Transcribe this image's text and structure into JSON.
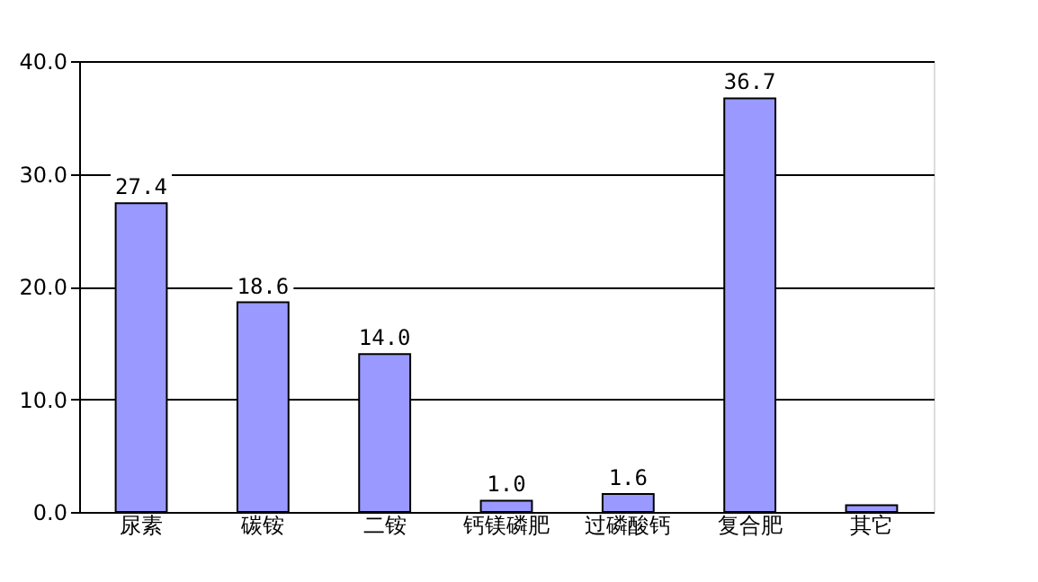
{
  "chart_data": {
    "type": "bar",
    "categories": [
      "尿素",
      "碳铵",
      "二铵",
      "钙镁磷肥",
      "过磷酸钙",
      "复合肥",
      "其它"
    ],
    "values": [
      27.4,
      18.6,
      14.0,
      1.0,
      1.6,
      36.7,
      0.6
    ],
    "value_labels": [
      "27.4",
      "18.6",
      "14.0",
      "1.0",
      "1.6",
      "36.7",
      null
    ],
    "color": "#9999ff",
    "ylim": [
      0,
      40
    ],
    "yticks": [
      {
        "value": 0,
        "label": "0.0"
      },
      {
        "value": 10,
        "label": "10.0"
      },
      {
        "value": 20,
        "label": "20.0"
      },
      {
        "value": 30,
        "label": "30.0"
      },
      {
        "value": 40,
        "label": "40.0"
      }
    ],
    "grid": "y"
  }
}
